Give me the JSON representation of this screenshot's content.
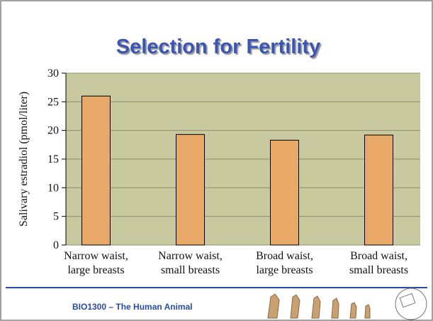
{
  "chart_data": {
    "type": "bar",
    "title": "Selection for Fertility",
    "y_label": "Salivary estradiol (pmol/liter)",
    "categories": [
      [
        "Narrow waist,",
        "large breasts"
      ],
      [
        "Narrow waist,",
        "small breasts"
      ],
      [
        "Broad waist,",
        "large breasts"
      ],
      [
        "Broad waist,",
        "small breasts"
      ]
    ],
    "values": [
      26,
      19.3,
      18.3,
      19.2
    ],
    "color": "#e8a868",
    "ylim": [
      0,
      30
    ],
    "yticks": [
      0,
      5,
      10,
      15,
      20,
      25,
      30
    ],
    "grid": true
  },
  "footer": "BIO1300 – The Human Animal"
}
